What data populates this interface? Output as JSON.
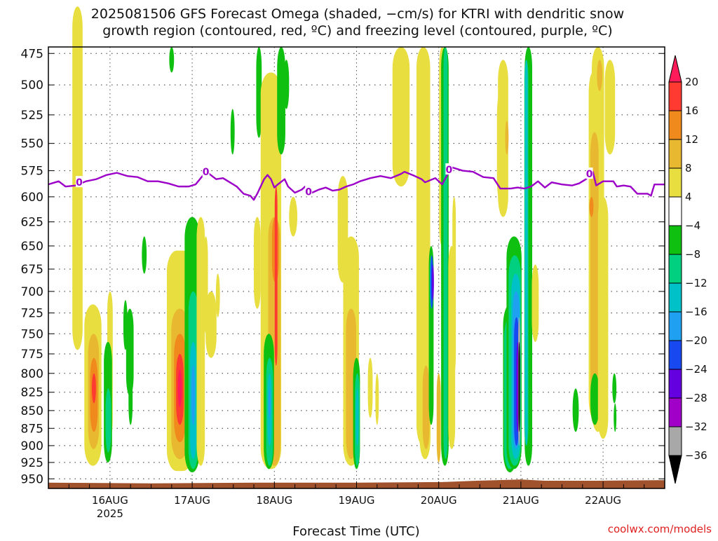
{
  "title": {
    "line1": "2025081506 GFS Forecast Omega (shaded, −cm/s) for KTRI with dendritic snow",
    "line2": "growth region (contoured, red, ºC) and freezing level (contoured, purple, ºC)"
  },
  "credit": "coolwx.com/models",
  "chart_data": {
    "type": "heatmap",
    "xlabel": "Forecast Time (UTC)",
    "x_ticks": [
      {
        "t": 18,
        "label": "16AUG",
        "sub": "2025"
      },
      {
        "t": 42,
        "label": "17AUG",
        "sub": ""
      },
      {
        "t": 66,
        "label": "18AUG",
        "sub": ""
      },
      {
        "t": 90,
        "label": "19AUG",
        "sub": ""
      },
      {
        "t": 114,
        "label": "20AUG",
        "sub": ""
      },
      {
        "t": 138,
        "label": "21AUG",
        "sub": ""
      },
      {
        "t": 162,
        "label": "22AUG",
        "sub": ""
      }
    ],
    "x_unit": "hours since 2025081506",
    "xlim": [
      0,
      180
    ],
    "y_ticks": [
      475,
      500,
      525,
      550,
      575,
      600,
      625,
      650,
      675,
      700,
      725,
      750,
      775,
      800,
      825,
      850,
      875,
      900,
      925,
      950
    ],
    "y_unit": "hPa",
    "ylim": [
      470,
      965
    ],
    "colorbar": {
      "labels": [
        "20",
        "16",
        "12",
        "8",
        "4",
        "−4",
        "−8",
        "−12",
        "−16",
        "−20",
        "−24",
        "−28",
        "−32",
        "−36"
      ],
      "colors": [
        "#ff1a5a",
        "#ff3a30",
        "#f08a1c",
        "#e8b830",
        "#e8de40",
        "#ffffff",
        "#10c010",
        "#00d080",
        "#00c0c8",
        "#20a0f0",
        "#1848f0",
        "#6400e0",
        "#a000c8",
        "#a8a8a8",
        "#000000"
      ]
    },
    "freezing_level": {
      "label": "0",
      "color": "#9c00c8",
      "points": [
        [
          0,
          588
        ],
        [
          3,
          585
        ],
        [
          5,
          590
        ],
        [
          8,
          589
        ],
        [
          11,
          585
        ],
        [
          14,
          583
        ],
        [
          17,
          579
        ],
        [
          20,
          577
        ],
        [
          23,
          580
        ],
        [
          26,
          581
        ],
        [
          29,
          585
        ],
        [
          32,
          585
        ],
        [
          35,
          587
        ],
        [
          38,
          590
        ],
        [
          41,
          590
        ],
        [
          43,
          588
        ],
        [
          45,
          580
        ],
        [
          46,
          575
        ],
        [
          47,
          578
        ],
        [
          49,
          583
        ],
        [
          51,
          582
        ],
        [
          53,
          586
        ],
        [
          55,
          590
        ],
        [
          57,
          597
        ],
        [
          59,
          599
        ],
        [
          60,
          603
        ],
        [
          61,
          597
        ],
        [
          63,
          583
        ],
        [
          64,
          579
        ],
        [
          65,
          583
        ],
        [
          66,
          591
        ],
        [
          67,
          588
        ],
        [
          69,
          583
        ],
        [
          70,
          590
        ],
        [
          72,
          596
        ],
        [
          74,
          593
        ],
        [
          75,
          590
        ],
        [
          77,
          596
        ],
        [
          79,
          593
        ],
        [
          81,
          591
        ],
        [
          83,
          594
        ],
        [
          85,
          593
        ],
        [
          87,
          590
        ],
        [
          89,
          588
        ],
        [
          91,
          585
        ],
        [
          94,
          582
        ],
        [
          97,
          580
        ],
        [
          100,
          582
        ],
        [
          103,
          578
        ],
        [
          104,
          576
        ],
        [
          107,
          580
        ],
        [
          109,
          583
        ],
        [
          110,
          586
        ],
        [
          113,
          582
        ],
        [
          115,
          588
        ],
        [
          117,
          576
        ],
        [
          118,
          572
        ],
        [
          121,
          575
        ],
        [
          124,
          576
        ],
        [
          127,
          581
        ],
        [
          130,
          582
        ],
        [
          132,
          592
        ],
        [
          135,
          592
        ],
        [
          137,
          591
        ],
        [
          139,
          592
        ],
        [
          141,
          590
        ],
        [
          143,
          585
        ],
        [
          145,
          591
        ],
        [
          147,
          586
        ],
        [
          150,
          588
        ],
        [
          153,
          589
        ],
        [
          155,
          587
        ],
        [
          157,
          583
        ],
        [
          159,
          576
        ],
        [
          160,
          589
        ],
        [
          162,
          585
        ],
        [
          165,
          585
        ],
        [
          166,
          590
        ],
        [
          168,
          589
        ],
        [
          170,
          590
        ],
        [
          172,
          597
        ],
        [
          175,
          597
        ],
        [
          176,
          599
        ],
        [
          177,
          588
        ],
        [
          178,
          588
        ],
        [
          180,
          588
        ]
      ],
      "label_positions": [
        [
          9,
          586
        ],
        [
          46,
          576
        ],
        [
          76,
          595
        ],
        [
          117,
          574
        ],
        [
          158,
          578
        ]
      ]
    },
    "terrain_color": "#a0522d",
    "shading_color_index": {
      "4_to_8": 4,
      "8_to_12": 3,
      "12_to_16": 2,
      "16_to_20": 1,
      "gt20": 0,
      "m4_to_m8": 6,
      "m8_to_m12": 7,
      "m12_to_m16": 8,
      "m16_to_m20": 9,
      "m20_to_m24": 10,
      "m24_to_m28": 11,
      "m28_to_m32": 12,
      "m32_to_m36": 13,
      "lt_m36": 14
    }
  }
}
